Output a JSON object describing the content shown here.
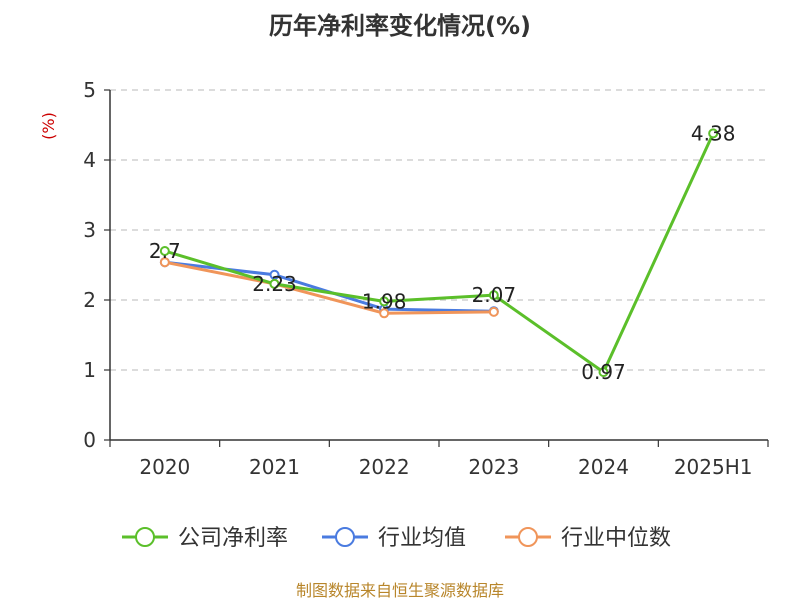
{
  "title": "历年净利率变化情况(%)",
  "source": "制图数据来自恒生聚源数据库",
  "chart_data": {
    "type": "line",
    "title": "历年净利率变化情况(%)",
    "ylabel": "(%)",
    "xlabel": "",
    "categories": [
      "2020",
      "2021",
      "2022",
      "2023",
      "2024",
      "2025H1"
    ],
    "ylim": [
      0,
      5
    ],
    "yticks": [
      0,
      1,
      2,
      3,
      4,
      5
    ],
    "grid": true,
    "legend_position": "bottom",
    "series": [
      {
        "name": "公司净利率",
        "color": "#5bbf2a",
        "values": [
          2.7,
          2.23,
          1.98,
          2.07,
          0.97,
          4.38
        ],
        "labels": [
          "2.7",
          "2.23",
          "1.98",
          "2.07",
          "0.97",
          "4.38"
        ]
      },
      {
        "name": "行业均值",
        "color": "#4a7be0",
        "values": [
          2.54,
          2.36,
          1.87,
          1.84,
          null,
          null
        ]
      },
      {
        "name": "行业中位数",
        "color": "#f0955a",
        "values": [
          2.54,
          2.23,
          1.81,
          1.83,
          null,
          null
        ]
      }
    ]
  }
}
